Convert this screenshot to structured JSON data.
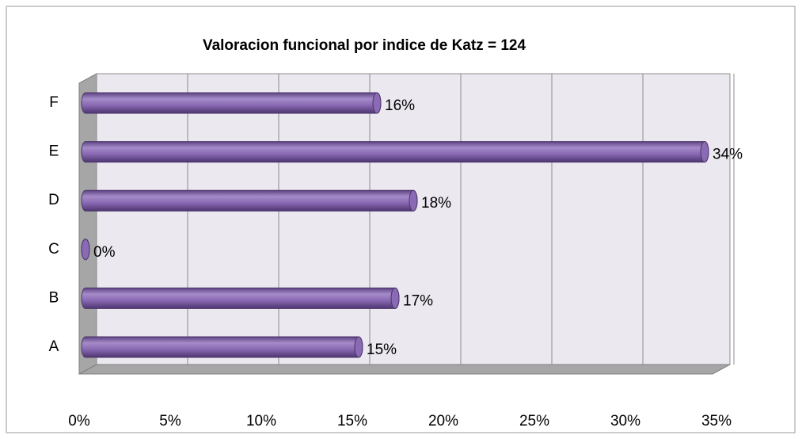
{
  "chart_data": {
    "type": "bar",
    "orientation": "horizontal",
    "title": "Valoracion funcional por indice de Katz  = 124",
    "categories": [
      "A",
      "B",
      "C",
      "D",
      "E",
      "F"
    ],
    "values": [
      15,
      17,
      0,
      18,
      34,
      16
    ],
    "value_labels": [
      "15%",
      "17%",
      "0%",
      "18%",
      "34%",
      "16%"
    ],
    "color": "#8a6ab4",
    "xlim": [
      0,
      35
    ],
    "xticks": [
      {
        "value": 0,
        "label": "0%"
      },
      {
        "value": 5,
        "label": "5%"
      },
      {
        "value": 10,
        "label": "10%"
      },
      {
        "value": 15,
        "label": "15%"
      },
      {
        "value": 20,
        "label": "20%"
      },
      {
        "value": 25,
        "label": "25%"
      },
      {
        "value": 30,
        "label": "30%"
      },
      {
        "value": 35,
        "label": "35%"
      }
    ],
    "grid": true
  }
}
